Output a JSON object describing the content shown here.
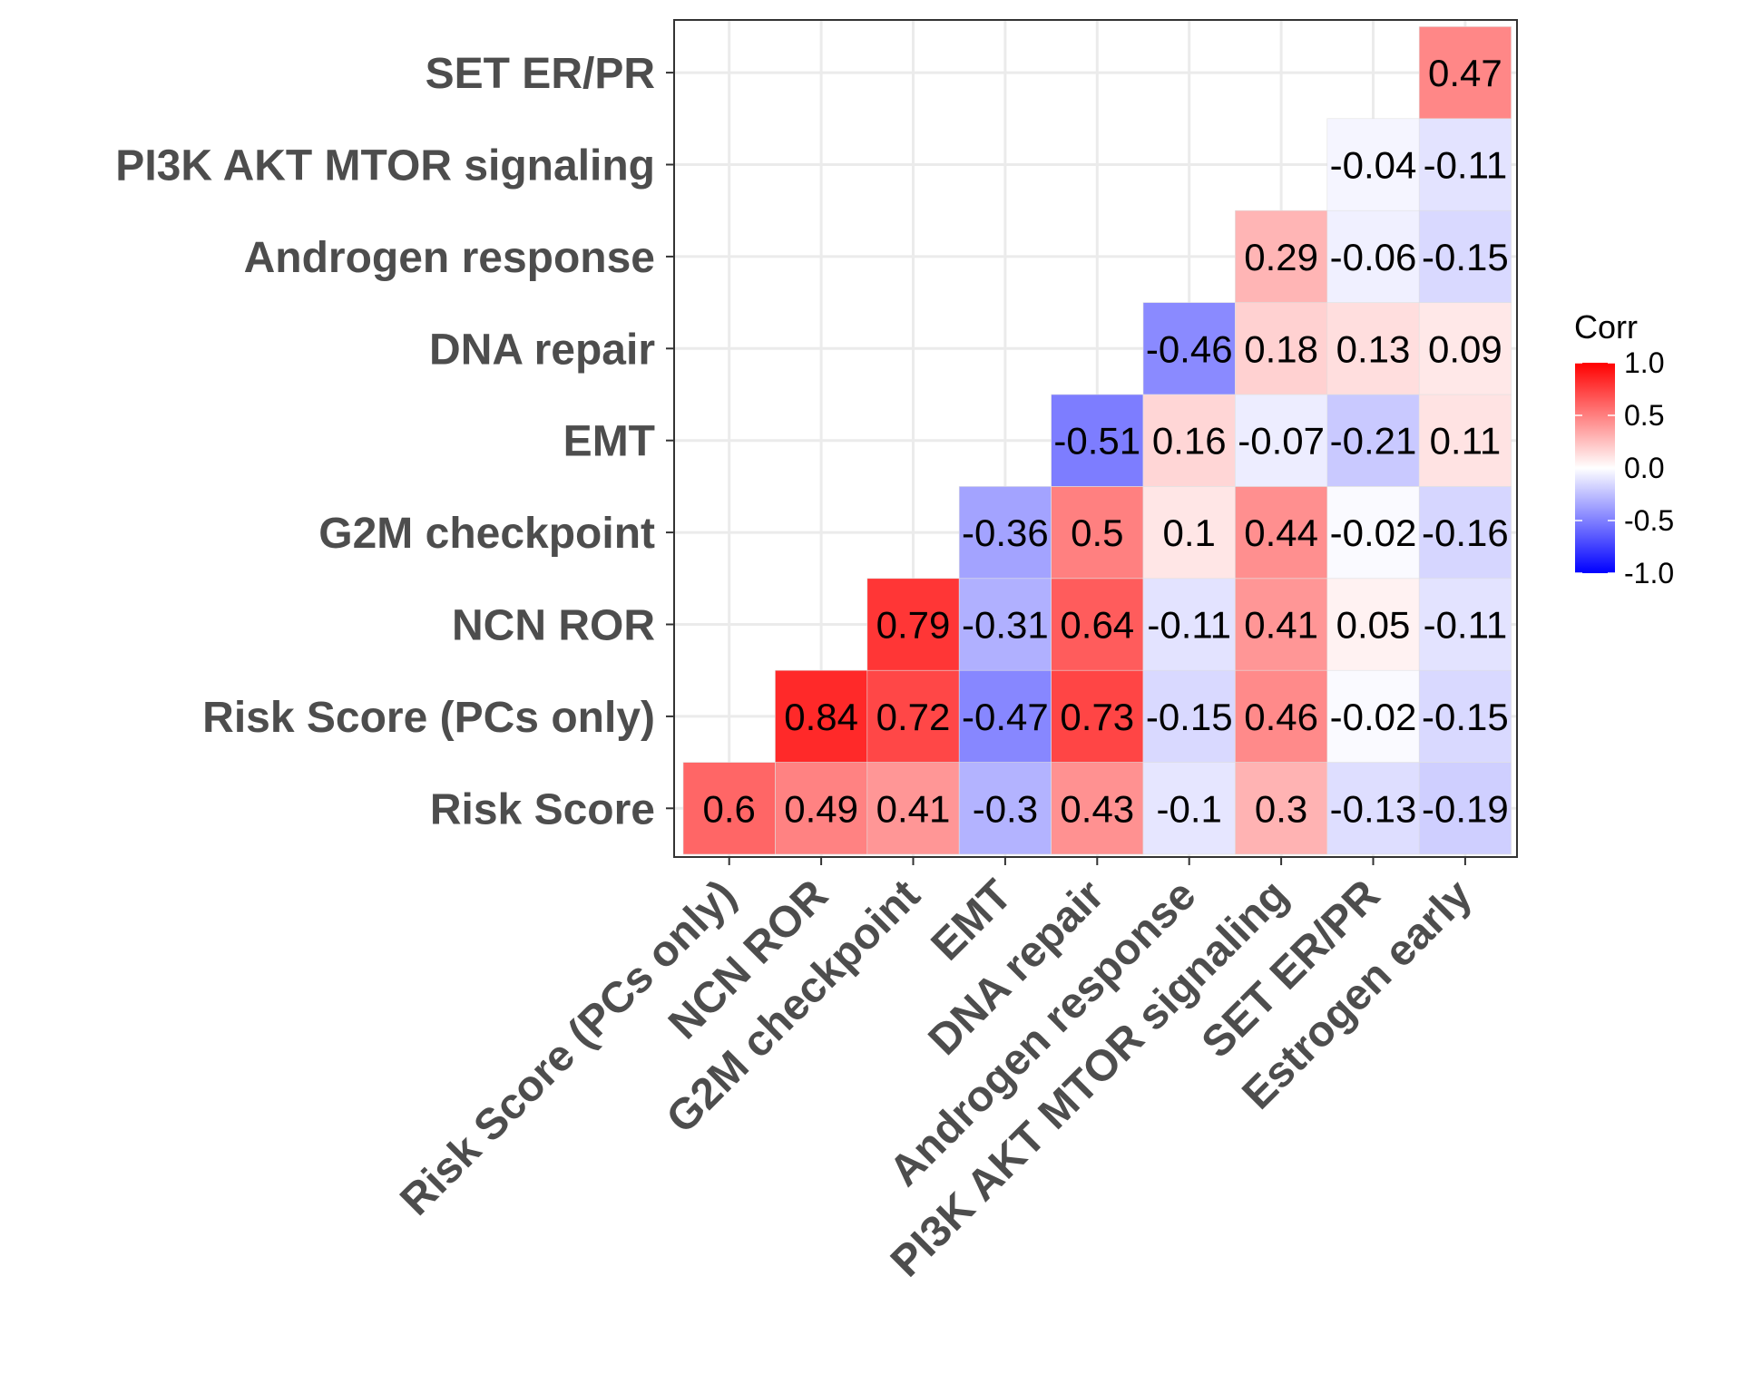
{
  "chart_data": {
    "type": "heatmap",
    "title": "",
    "xlabel": "",
    "ylabel": "",
    "x_categories": [
      "Risk Score (PCs only)",
      "NCN ROR",
      "G2M checkpoint",
      "EMT",
      "DNA repair",
      "Androgen response",
      "PI3K AKT MTOR signaling",
      "SET ER/PR",
      "Estrogen early"
    ],
    "y_categories": [
      "Risk Score",
      "Risk Score (PCs only)",
      "NCN ROR",
      "G2M checkpoint",
      "EMT",
      "DNA repair",
      "Androgen response",
      "PI3K AKT MTOR signaling",
      "SET ER/PR"
    ],
    "values": [
      [
        0.6,
        0.49,
        0.41,
        -0.3,
        0.43,
        -0.1,
        0.3,
        -0.13,
        -0.19
      ],
      [
        null,
        0.84,
        0.72,
        -0.47,
        0.73,
        -0.15,
        0.46,
        -0.02,
        -0.15
      ],
      [
        null,
        null,
        0.79,
        -0.31,
        0.64,
        -0.11,
        0.41,
        0.05,
        -0.11
      ],
      [
        null,
        null,
        null,
        -0.36,
        0.5,
        0.1,
        0.44,
        -0.02,
        -0.16
      ],
      [
        null,
        null,
        null,
        null,
        -0.51,
        0.16,
        -0.07,
        -0.21,
        0.11
      ],
      [
        null,
        null,
        null,
        null,
        null,
        -0.46,
        0.18,
        0.13,
        0.09
      ],
      [
        null,
        null,
        null,
        null,
        null,
        null,
        0.29,
        -0.06,
        -0.15
      ],
      [
        null,
        null,
        null,
        null,
        null,
        null,
        null,
        -0.04,
        -0.11
      ],
      [
        null,
        null,
        null,
        null,
        null,
        null,
        null,
        null,
        0.47
      ]
    ],
    "color_scale": {
      "low": "#0000ff",
      "mid": "#ffffff",
      "high": "#ff0000",
      "range": [
        -1,
        1
      ]
    },
    "legend": {
      "title": "Corr",
      "ticks": [
        "1.0",
        "0.5",
        "0.0",
        "-0.5",
        "-1.0"
      ],
      "tick_values": [
        1,
        0.5,
        0,
        -0.5,
        -1
      ],
      "placement": "right"
    },
    "grid": true
  }
}
